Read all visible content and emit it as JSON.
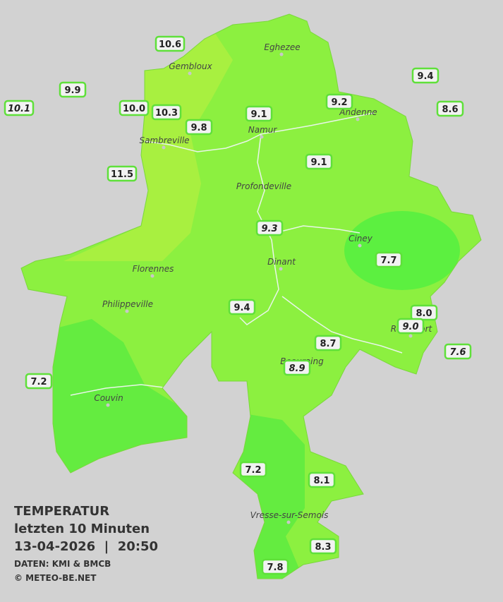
{
  "legend": {
    "title": "TEMPERATUR",
    "period": "letzten 10 Minuten",
    "datetime": "13-04-2026  |  20:50",
    "source": "DATEN: KMI & BMCB",
    "copyright": "© METEO-BE.NET"
  },
  "cities": [
    "Eghezee",
    "Gembloux",
    "Andenne",
    "Namur",
    "Sambreville",
    "Profondeville",
    "Ciney",
    "Dinant",
    "Florennes",
    "Philippeville",
    "Rochefort",
    "Beauraing",
    "Couvin",
    "Vresse-sur-Semois"
  ],
  "readings": [
    {
      "label": "10.6"
    },
    {
      "label": "9.9"
    },
    {
      "label": "10.1",
      "italic": true
    },
    {
      "label": "10.0"
    },
    {
      "label": "10.3"
    },
    {
      "label": "9.8"
    },
    {
      "label": "9.1"
    },
    {
      "label": "9.2"
    },
    {
      "label": "9.4"
    },
    {
      "label": "8.6"
    },
    {
      "label": "11.5"
    },
    {
      "label": "9.1"
    },
    {
      "label": "9.3",
      "italic": true
    },
    {
      "label": "7.7"
    },
    {
      "label": "9.4"
    },
    {
      "label": "8.0"
    },
    {
      "label": "9.0",
      "italic": true
    },
    {
      "label": "8.7"
    },
    {
      "label": "8.9",
      "italic": true
    },
    {
      "label": "7.6",
      "italic": true
    },
    {
      "label": "7.2"
    },
    {
      "label": "7.2"
    },
    {
      "label": "8.1"
    },
    {
      "label": "8.3"
    },
    {
      "label": "7.8"
    }
  ]
}
